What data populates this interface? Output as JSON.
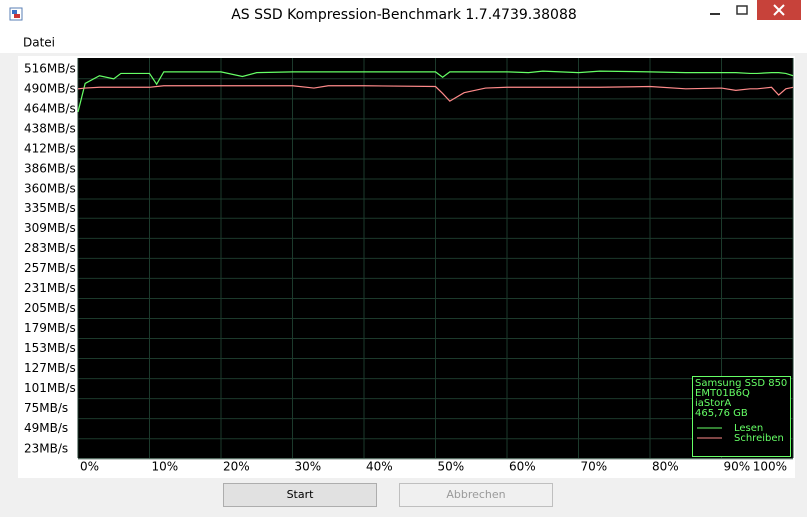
{
  "window": {
    "title": "AS SSD Kompression-Benchmark 1.7.4739.38088",
    "menu": [
      "Datei"
    ],
    "buttons": [
      "Start",
      "Abbrechen"
    ]
  },
  "chart_data": {
    "type": "line",
    "x": [
      0,
      1,
      3,
      5,
      6,
      8,
      10,
      11,
      12,
      15,
      20,
      23,
      25,
      30,
      33,
      35,
      40,
      50,
      51,
      52,
      54,
      57,
      60,
      63,
      65,
      70,
      73,
      80,
      85,
      90,
      92,
      94,
      95,
      97,
      98,
      99,
      100
    ],
    "series": [
      {
        "name": "Lesen",
        "color": "#66ff66",
        "values": [
          460,
          497,
          507,
          503,
          510,
          510,
          510,
          496,
          512,
          512,
          512,
          506,
          511,
          512,
          512,
          512,
          512,
          512,
          505,
          512,
          512,
          512,
          512,
          511,
          513,
          511,
          513,
          512,
          511,
          511,
          511,
          510,
          510,
          511,
          511,
          510,
          507
        ]
      },
      {
        "name": "Schreiben",
        "color": "#ff8a8a",
        "values": [
          490,
          491,
          492,
          492,
          492,
          492,
          492,
          493,
          494,
          494,
          494,
          494,
          494,
          494,
          491,
          494,
          494,
          493,
          484,
          474,
          485,
          491,
          492,
          492,
          492,
          492,
          492,
          493,
          490,
          491,
          488,
          490,
          490,
          492,
          482,
          490,
          492
        ]
      }
    ],
    "legend_header": [
      "Samsung SSD 850",
      "EMT01B6Q",
      "iaStorA",
      "465,76 GB"
    ],
    "xlim": [
      0,
      100
    ],
    "xticks": [
      {
        "value": 0,
        "label": "0%"
      },
      {
        "value": 10,
        "label": "10%"
      },
      {
        "value": 20,
        "label": "20%"
      },
      {
        "value": 30,
        "label": "30%"
      },
      {
        "value": 40,
        "label": "40%"
      },
      {
        "value": 50,
        "label": "50%"
      },
      {
        "value": 60,
        "label": "60%"
      },
      {
        "value": 70,
        "label": "70%"
      },
      {
        "value": 80,
        "label": "80%"
      },
      {
        "value": 90,
        "label": "90%"
      },
      {
        "value": 100,
        "label": "100%"
      }
    ],
    "ylim": [
      11,
      530
    ],
    "yticks": [
      {
        "value": 516,
        "label": "516MB/s"
      },
      {
        "value": 490,
        "label": "490MB/s"
      },
      {
        "value": 464,
        "label": "464MB/s"
      },
      {
        "value": 438,
        "label": "438MB/s"
      },
      {
        "value": 412,
        "label": "412MB/s"
      },
      {
        "value": 386,
        "label": "386MB/s"
      },
      {
        "value": 360,
        "label": "360MB/s"
      },
      {
        "value": 335,
        "label": "335MB/s"
      },
      {
        "value": 309,
        "label": "309MB/s"
      },
      {
        "value": 283,
        "label": "283MB/s"
      },
      {
        "value": 257,
        "label": "257MB/s"
      },
      {
        "value": 231,
        "label": "231MB/s"
      },
      {
        "value": 205,
        "label": "205MB/s"
      },
      {
        "value": 179,
        "label": "179MB/s"
      },
      {
        "value": 153,
        "label": "153MB/s"
      },
      {
        "value": 127,
        "label": "127MB/s"
      },
      {
        "value": 101,
        "label": "101MB/s"
      },
      {
        "value": 75,
        "label": "75MB/s"
      },
      {
        "value": 49,
        "label": "49MB/s"
      },
      {
        "value": 23,
        "label": "23MB/s"
      }
    ],
    "grid": true
  }
}
